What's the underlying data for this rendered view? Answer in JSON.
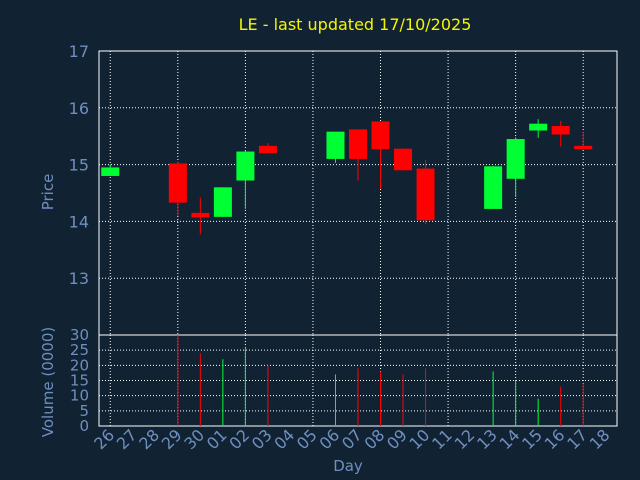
{
  "colors": {
    "background": "#112233",
    "up": "#00ff33",
    "down": "#ff0000",
    "axis_text": "#6f8fbf",
    "title": "#f5f500",
    "grid": "#ffffff"
  },
  "chart_data": {
    "type": "candlestick",
    "title": "LE - last updated 17/10/2025",
    "xlabel": "Day",
    "grid": true,
    "price_panel": {
      "ylabel": "Price",
      "ylim": [
        12,
        17
      ],
      "yticks": [
        "13",
        "14",
        "15",
        "16",
        "17"
      ]
    },
    "volume_panel": {
      "ylabel": "Volume (0000)",
      "ylim": [
        0,
        30
      ],
      "yticks": [
        "0",
        "5",
        "10",
        "15",
        "20",
        "25",
        "30"
      ]
    },
    "x_ticks": [
      "26",
      "27",
      "28",
      "29",
      "30",
      "01",
      "02",
      "03",
      "04",
      "05",
      "06",
      "07",
      "08",
      "09",
      "10",
      "11",
      "12",
      "13",
      "14",
      "15",
      "16",
      "17",
      "18"
    ],
    "candles": [
      {
        "day": "26",
        "open": 14.8,
        "close": 14.95,
        "high": 15.0,
        "low": 14.8,
        "volume": 0
      },
      {
        "day": "29",
        "open": 15.02,
        "close": 14.33,
        "high": 15.05,
        "low": 14.1,
        "volume": 30
      },
      {
        "day": "30",
        "open": 14.15,
        "close": 14.07,
        "high": 14.42,
        "low": 13.77,
        "volume": 24
      },
      {
        "day": "01",
        "open": 14.08,
        "close": 14.6,
        "high": 14.6,
        "low": 14.08,
        "volume": 22
      },
      {
        "day": "02",
        "open": 14.72,
        "close": 15.23,
        "high": 15.25,
        "low": 14.22,
        "volume": 26
      },
      {
        "day": "03",
        "open": 15.33,
        "close": 15.2,
        "high": 15.38,
        "low": 15.2,
        "volume": 20
      },
      {
        "day": "06",
        "open": 15.1,
        "close": 15.58,
        "high": 15.58,
        "low": 15.03,
        "volume": 17
      },
      {
        "day": "07",
        "open": 15.62,
        "close": 15.1,
        "high": 15.62,
        "low": 14.72,
        "volume": 19
      },
      {
        "day": "08",
        "open": 15.76,
        "close": 15.27,
        "high": 15.76,
        "low": 14.57,
        "volume": 18
      },
      {
        "day": "09",
        "open": 15.28,
        "close": 14.9,
        "high": 15.28,
        "low": 14.9,
        "volume": 17
      },
      {
        "day": "10",
        "open": 14.93,
        "close": 14.02,
        "high": 15.08,
        "low": 13.95,
        "volume": 19
      },
      {
        "day": "13",
        "open": 14.22,
        "close": 14.97,
        "high": 14.97,
        "low": 14.22,
        "volume": 18
      },
      {
        "day": "14",
        "open": 14.75,
        "close": 15.45,
        "high": 15.48,
        "low": 14.43,
        "volume": 15
      },
      {
        "day": "15",
        "open": 15.6,
        "close": 15.72,
        "high": 15.8,
        "low": 15.47,
        "volume": 9
      },
      {
        "day": "16",
        "open": 15.68,
        "close": 15.53,
        "high": 15.77,
        "low": 15.32,
        "volume": 13
      },
      {
        "day": "17",
        "open": 15.33,
        "close": 15.27,
        "high": 15.58,
        "low": 15.27,
        "volume": 14
      }
    ]
  }
}
